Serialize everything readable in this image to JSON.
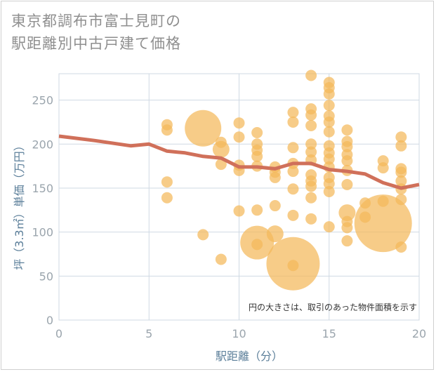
{
  "title_line1": "東京都調布市富士見町の",
  "title_line2": "駅距離別中古戸建て価格",
  "chart_data": {
    "type": "scatter",
    "xlabel": "駅距離（分）",
    "ylabel": "坪（3.3㎡）単価（万円）",
    "xlim": [
      0,
      20
    ],
    "ylim": [
      0,
      280
    ],
    "xticks": [
      0,
      5,
      10,
      15,
      20
    ],
    "yticks": [
      0,
      50,
      100,
      150,
      200,
      250
    ],
    "grid": true,
    "note": "円の大きさは、取引のあった物件面積を示す",
    "colors": {
      "bubble": "#f4b85a",
      "trend": "#d0705a",
      "grid": "#cfd9e3"
    },
    "points": [
      {
        "x": 6,
        "y": 222,
        "s": 1
      },
      {
        "x": 6,
        "y": 216,
        "s": 1
      },
      {
        "x": 6,
        "y": 157,
        "s": 1
      },
      {
        "x": 6,
        "y": 139,
        "s": 1
      },
      {
        "x": 8,
        "y": 218,
        "s": 5
      },
      {
        "x": 8,
        "y": 97,
        "s": 1
      },
      {
        "x": 9,
        "y": 202,
        "s": 1
      },
      {
        "x": 9,
        "y": 194,
        "s": 2
      },
      {
        "x": 9,
        "y": 177,
        "s": 1
      },
      {
        "x": 9,
        "y": 69,
        "s": 1
      },
      {
        "x": 10,
        "y": 224,
        "s": 1
      },
      {
        "x": 10,
        "y": 208,
        "s": 1
      },
      {
        "x": 10,
        "y": 176,
        "s": 1
      },
      {
        "x": 10,
        "y": 170,
        "s": 1
      },
      {
        "x": 10,
        "y": 124,
        "s": 1
      },
      {
        "x": 11,
        "y": 213,
        "s": 1
      },
      {
        "x": 11,
        "y": 200,
        "s": 1
      },
      {
        "x": 11,
        "y": 193,
        "s": 1
      },
      {
        "x": 11,
        "y": 186,
        "s": 1
      },
      {
        "x": 11,
        "y": 175,
        "s": 1
      },
      {
        "x": 11,
        "y": 125,
        "s": 1
      },
      {
        "x": 11,
        "y": 88,
        "s": 4
      },
      {
        "x": 11,
        "y": 86,
        "s": 1
      },
      {
        "x": 12,
        "y": 174,
        "s": 1
      },
      {
        "x": 12,
        "y": 168,
        "s": 1
      },
      {
        "x": 12,
        "y": 162,
        "s": 1
      },
      {
        "x": 12,
        "y": 130,
        "s": 1
      },
      {
        "x": 12,
        "y": 98,
        "s": 2
      },
      {
        "x": 13,
        "y": 236,
        "s": 1
      },
      {
        "x": 13,
        "y": 225,
        "s": 1
      },
      {
        "x": 13,
        "y": 196,
        "s": 1
      },
      {
        "x": 13,
        "y": 178,
        "s": 1
      },
      {
        "x": 13,
        "y": 169,
        "s": 1
      },
      {
        "x": 13,
        "y": 149,
        "s": 1
      },
      {
        "x": 13,
        "y": 119,
        "s": 1
      },
      {
        "x": 13,
        "y": 64,
        "s": 6
      },
      {
        "x": 13,
        "y": 62,
        "s": 1
      },
      {
        "x": 14,
        "y": 278,
        "s": 1
      },
      {
        "x": 14,
        "y": 240,
        "s": 1
      },
      {
        "x": 14,
        "y": 233,
        "s": 1
      },
      {
        "x": 14,
        "y": 221,
        "s": 1
      },
      {
        "x": 14,
        "y": 200,
        "s": 1
      },
      {
        "x": 14,
        "y": 191,
        "s": 1
      },
      {
        "x": 14,
        "y": 182,
        "s": 1
      },
      {
        "x": 14,
        "y": 165,
        "s": 1
      },
      {
        "x": 14,
        "y": 158,
        "s": 1
      },
      {
        "x": 14,
        "y": 152,
        "s": 1
      },
      {
        "x": 14,
        "y": 139,
        "s": 1
      },
      {
        "x": 14,
        "y": 115,
        "s": 1
      },
      {
        "x": 15,
        "y": 270,
        "s": 1
      },
      {
        "x": 15,
        "y": 264,
        "s": 1
      },
      {
        "x": 15,
        "y": 257,
        "s": 1
      },
      {
        "x": 15,
        "y": 244,
        "s": 1
      },
      {
        "x": 15,
        "y": 232,
        "s": 1
      },
      {
        "x": 15,
        "y": 225,
        "s": 1
      },
      {
        "x": 15,
        "y": 214,
        "s": 1
      },
      {
        "x": 15,
        "y": 198,
        "s": 1
      },
      {
        "x": 15,
        "y": 190,
        "s": 1
      },
      {
        "x": 15,
        "y": 183,
        "s": 1
      },
      {
        "x": 15,
        "y": 174,
        "s": 1
      },
      {
        "x": 15,
        "y": 162,
        "s": 1
      },
      {
        "x": 15,
        "y": 155,
        "s": 1
      },
      {
        "x": 15,
        "y": 146,
        "s": 1
      },
      {
        "x": 15,
        "y": 106,
        "s": 1
      },
      {
        "x": 16,
        "y": 216,
        "s": 1
      },
      {
        "x": 16,
        "y": 203,
        "s": 1
      },
      {
        "x": 16,
        "y": 197,
        "s": 1
      },
      {
        "x": 16,
        "y": 188,
        "s": 1
      },
      {
        "x": 16,
        "y": 181,
        "s": 1
      },
      {
        "x": 16,
        "y": 170,
        "s": 1
      },
      {
        "x": 16,
        "y": 154,
        "s": 1
      },
      {
        "x": 16,
        "y": 122,
        "s": 2
      },
      {
        "x": 16,
        "y": 112,
        "s": 1
      },
      {
        "x": 16,
        "y": 105,
        "s": 1
      },
      {
        "x": 16,
        "y": 90,
        "s": 1
      },
      {
        "x": 17,
        "y": 133,
        "s": 1
      },
      {
        "x": 17,
        "y": 117,
        "s": 1
      },
      {
        "x": 18,
        "y": 181,
        "s": 1
      },
      {
        "x": 18,
        "y": 173,
        "s": 1
      },
      {
        "x": 18,
        "y": 135,
        "s": 1
      },
      {
        "x": 18,
        "y": 110,
        "s": 7
      },
      {
        "x": 19,
        "y": 208,
        "s": 1
      },
      {
        "x": 19,
        "y": 198,
        "s": 1
      },
      {
        "x": 19,
        "y": 172,
        "s": 1
      },
      {
        "x": 19,
        "y": 168,
        "s": 1
      },
      {
        "x": 19,
        "y": 158,
        "s": 1
      },
      {
        "x": 19,
        "y": 149,
        "s": 1
      },
      {
        "x": 19,
        "y": 137,
        "s": 1
      },
      {
        "x": 19,
        "y": 83,
        "s": 1
      }
    ],
    "trend": [
      {
        "x": 0,
        "y": 209
      },
      {
        "x": 2,
        "y": 204
      },
      {
        "x": 4,
        "y": 198
      },
      {
        "x": 5,
        "y": 200
      },
      {
        "x": 6,
        "y": 192
      },
      {
        "x": 7,
        "y": 190
      },
      {
        "x": 8,
        "y": 186
      },
      {
        "x": 9,
        "y": 184
      },
      {
        "x": 10,
        "y": 174
      },
      {
        "x": 11,
        "y": 174
      },
      {
        "x": 12,
        "y": 172
      },
      {
        "x": 13,
        "y": 178
      },
      {
        "x": 14,
        "y": 178
      },
      {
        "x": 15,
        "y": 171
      },
      {
        "x": 16,
        "y": 169
      },
      {
        "x": 17,
        "y": 166
      },
      {
        "x": 18,
        "y": 156
      },
      {
        "x": 19,
        "y": 150
      },
      {
        "x": 20,
        "y": 154
      }
    ]
  }
}
